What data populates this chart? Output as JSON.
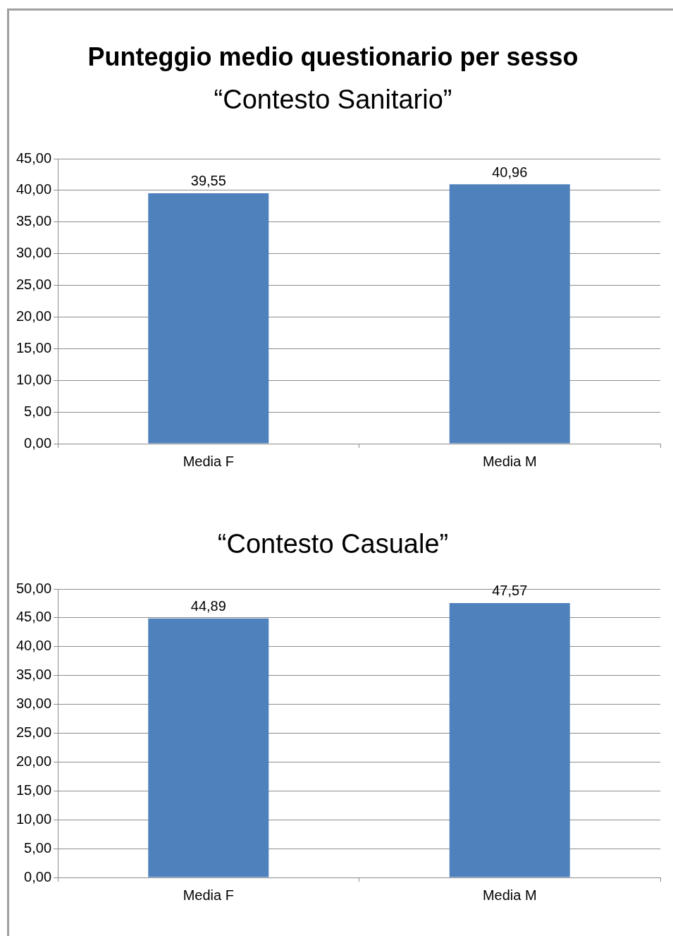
{
  "chart_data": [
    {
      "type": "bar",
      "title": "Punteggio medio questionario per sesso",
      "subtitle": "“Contesto Sanitario”",
      "categories": [
        "Media F",
        "Media M"
      ],
      "values": [
        39.55,
        40.96
      ],
      "value_labels": [
        "39,55",
        "40,96"
      ],
      "color": "#4f81bd",
      "ylim": [
        0,
        45
      ],
      "yticks": [
        {
          "value": 0,
          "label": "0,00"
        },
        {
          "value": 5,
          "label": "5,00"
        },
        {
          "value": 10,
          "label": "10,00"
        },
        {
          "value": 15,
          "label": "15,00"
        },
        {
          "value": 20,
          "label": "20,00"
        },
        {
          "value": 25,
          "label": "25,00"
        },
        {
          "value": 30,
          "label": "30,00"
        },
        {
          "value": 35,
          "label": "35,00"
        },
        {
          "value": 40,
          "label": "40,00"
        },
        {
          "value": 45,
          "label": "45,00"
        }
      ],
      "grid": "y",
      "legend": false
    },
    {
      "type": "bar",
      "title": "“Contesto Casuale”",
      "categories": [
        "Media F",
        "Media M"
      ],
      "values": [
        44.89,
        47.57
      ],
      "value_labels": [
        "44,89",
        "47,57"
      ],
      "color": "#4f81bd",
      "ylim": [
        0,
        50
      ],
      "yticks": [
        {
          "value": 0,
          "label": "0,00"
        },
        {
          "value": 5,
          "label": "5,00"
        },
        {
          "value": 10,
          "label": "10,00"
        },
        {
          "value": 15,
          "label": "15,00"
        },
        {
          "value": 20,
          "label": "20,00"
        },
        {
          "value": 25,
          "label": "25,00"
        },
        {
          "value": 30,
          "label": "30,00"
        },
        {
          "value": 35,
          "label": "35,00"
        },
        {
          "value": 40,
          "label": "40,00"
        },
        {
          "value": 45,
          "label": "45,00"
        },
        {
          "value": 50,
          "label": "50,00"
        }
      ],
      "grid": "y",
      "legend": false
    }
  ]
}
